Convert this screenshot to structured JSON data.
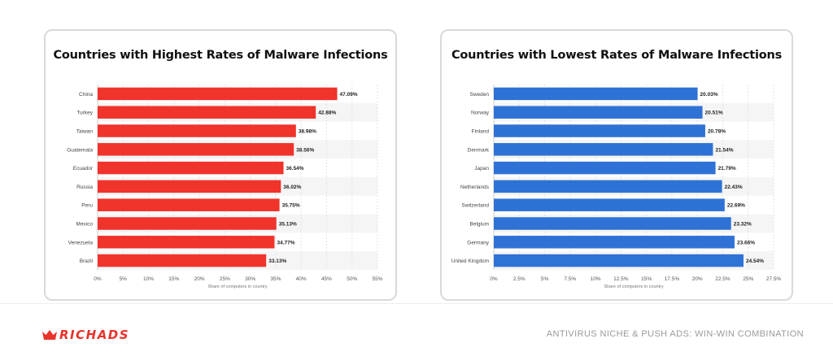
{
  "chart_data": [
    {
      "type": "bar",
      "orientation": "horizontal",
      "title": "Countries with Highest Rates of Malware Infections",
      "xlabel": "Share of computers in country",
      "categories": [
        "China",
        "Turkey",
        "Taiwan",
        "Guatemala",
        "Ecuador",
        "Russia",
        "Peru",
        "Mexico",
        "Venezuela",
        "Brazil"
      ],
      "values": [
        47.09,
        42.88,
        38.98,
        38.56,
        36.54,
        36.02,
        35.75,
        35.13,
        34.77,
        33.13
      ],
      "value_labels": [
        "47.09%",
        "42.88%",
        "38.98%",
        "38.56%",
        "36.54%",
        "36.02%",
        "35.75%",
        "35.13%",
        "34.77%",
        "33.13%"
      ],
      "xlim": [
        0,
        55
      ],
      "ticks": [
        0,
        5,
        10,
        15,
        20,
        25,
        30,
        35,
        40,
        45,
        50,
        55
      ],
      "tick_labels": [
        "0%",
        "5%",
        "10%",
        "15%",
        "20%",
        "25%",
        "30%",
        "35%",
        "40%",
        "45%",
        "50%",
        "55%"
      ],
      "color": "#f0332b",
      "grid": "vertical"
    },
    {
      "type": "bar",
      "orientation": "horizontal",
      "title": "Countries with Lowest Rates of Malware Infections",
      "xlabel": "Share of computers in country",
      "categories": [
        "Sweden",
        "Norway",
        "Finland",
        "Denmark",
        "Japan",
        "Netherlands",
        "Switzerland",
        "Belgium",
        "Germany",
        "United Kingdom"
      ],
      "values": [
        20.03,
        20.51,
        20.78,
        21.54,
        21.79,
        22.43,
        22.69,
        23.32,
        23.66,
        24.54
      ],
      "value_labels": [
        "20.03%",
        "20.51%",
        "20.78%",
        "21.54%",
        "21.79%",
        "22.43%",
        "22.69%",
        "23.32%",
        "23.66%",
        "24.54%"
      ],
      "xlim": [
        0,
        27.5
      ],
      "ticks": [
        0,
        2.5,
        5,
        7.5,
        10,
        12.5,
        15,
        17.5,
        20,
        22.5,
        25,
        27.5
      ],
      "tick_labels": [
        "0%",
        "2.5%",
        "5%",
        "7.5%",
        "10%",
        "12.5%",
        "15%",
        "17.5%",
        "20%",
        "22.5%",
        "25%",
        "27.5%"
      ],
      "color": "#2f72d6",
      "grid": "vertical"
    }
  ],
  "footer": {
    "brand": "RICHADS",
    "brand_color": "#e8332b",
    "brand_icon": "crown-icon",
    "tagline": "ANTIVIRUS NICHE & PUSH ADS: WIN-WIN COMBINATION"
  }
}
